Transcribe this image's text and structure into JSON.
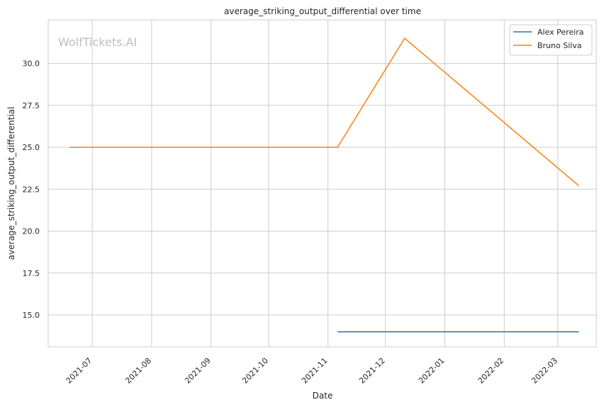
{
  "chart_data": {
    "type": "line",
    "title": "average_striking_output_differential over time",
    "xlabel": "Date",
    "ylabel": "average_striking_output_differential",
    "watermark": "WolfTickets.AI",
    "x_ticks": [
      "2021-07",
      "2021-08",
      "2021-09",
      "2021-10",
      "2021-11",
      "2021-12",
      "2022-01",
      "2022-02",
      "2022-03"
    ],
    "y_ticks": [
      "15.0",
      "17.5",
      "20.0",
      "22.5",
      "25.0",
      "27.5",
      "30.0"
    ],
    "xlim": [
      "2021-06-08",
      "2022-03-21"
    ],
    "ylim": [
      13.1,
      32.6
    ],
    "grid": true,
    "legend_position": "top-right",
    "series": [
      {
        "name": "Alex Pereira",
        "color": "#1f77b4",
        "points": [
          {
            "x": "2021-11-06",
            "y": 14.0
          },
          {
            "x": "2022-03-12",
            "y": 14.0
          }
        ]
      },
      {
        "name": "Bruno Silva",
        "color": "#ff7f0e",
        "points": [
          {
            "x": "2021-06-19",
            "y": 25.0
          },
          {
            "x": "2021-11-06",
            "y": 25.0
          },
          {
            "x": "2021-12-11",
            "y": 31.5
          },
          {
            "x": "2022-03-12",
            "y": 22.7
          }
        ]
      }
    ]
  }
}
